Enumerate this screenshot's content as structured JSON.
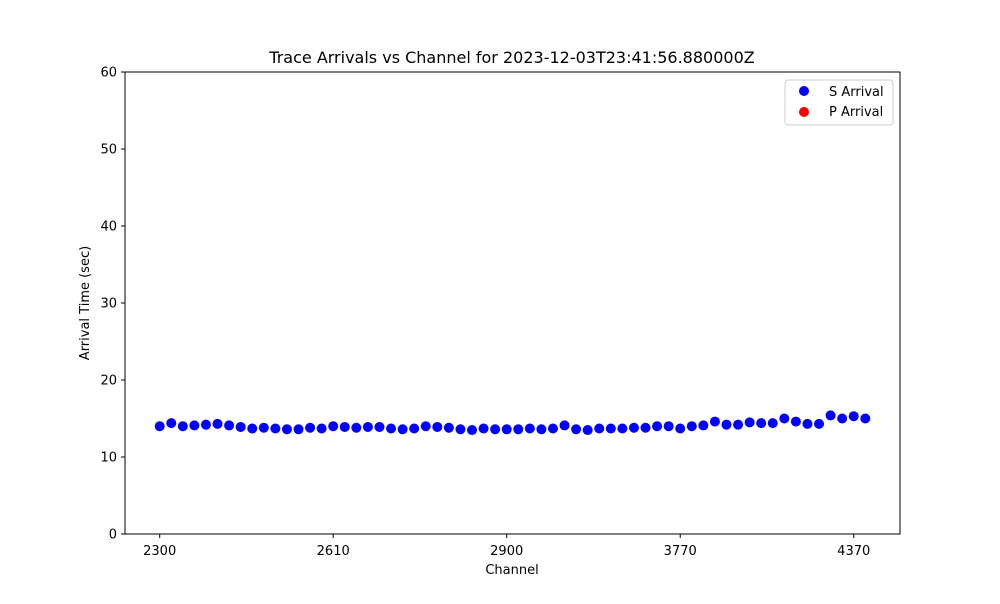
{
  "chart_data": {
    "type": "scatter",
    "title": "Trace Arrivals vs Channel for 2023-12-03T23:41:56.880000Z",
    "xlabel": "Channel",
    "ylabel": "Arrival Time (sec)",
    "ylim": [
      0,
      60
    ],
    "y_ticks": [
      0,
      10,
      20,
      30,
      40,
      50,
      60
    ],
    "x_tick_labels": [
      "2300",
      "2610",
      "2900",
      "3770",
      "4370"
    ],
    "x_tick_positions": [
      0,
      15,
      30,
      45,
      60
    ],
    "x_range": [
      -3,
      64
    ],
    "grid": false,
    "legend_position": "top-right",
    "series": [
      {
        "name": "S Arrival",
        "color": "#0000ff",
        "x": [
          0,
          1,
          2,
          3,
          4,
          5,
          6,
          7,
          8,
          9,
          10,
          11,
          12,
          13,
          14,
          15,
          16,
          17,
          18,
          19,
          20,
          21,
          22,
          23,
          24,
          25,
          26,
          27,
          28,
          29,
          30,
          31,
          32,
          33,
          34,
          35,
          36,
          37,
          38,
          39,
          40,
          41,
          42,
          43,
          44,
          45,
          46,
          47,
          48,
          49,
          50,
          51,
          52,
          53,
          54,
          55,
          56,
          57,
          58,
          59,
          60,
          61
        ],
        "y": [
          14.0,
          14.4,
          14.0,
          14.1,
          14.2,
          14.3,
          14.1,
          13.9,
          13.7,
          13.8,
          13.7,
          13.6,
          13.6,
          13.8,
          13.7,
          14.0,
          13.9,
          13.8,
          13.9,
          13.9,
          13.7,
          13.6,
          13.7,
          14.0,
          13.9,
          13.8,
          13.6,
          13.5,
          13.7,
          13.6,
          13.6,
          13.6,
          13.7,
          13.6,
          13.7,
          14.1,
          13.6,
          13.5,
          13.7,
          13.7,
          13.7,
          13.8,
          13.8,
          14.0,
          14.0,
          13.7,
          14.0,
          14.1,
          14.6,
          14.2,
          14.2,
          14.5,
          14.4,
          14.4,
          15.0,
          14.6,
          14.3,
          14.3,
          15.4,
          15.0,
          15.3,
          15.0
        ]
      },
      {
        "name": "P Arrival",
        "color": "#ff0000",
        "x": [],
        "y": []
      }
    ]
  }
}
